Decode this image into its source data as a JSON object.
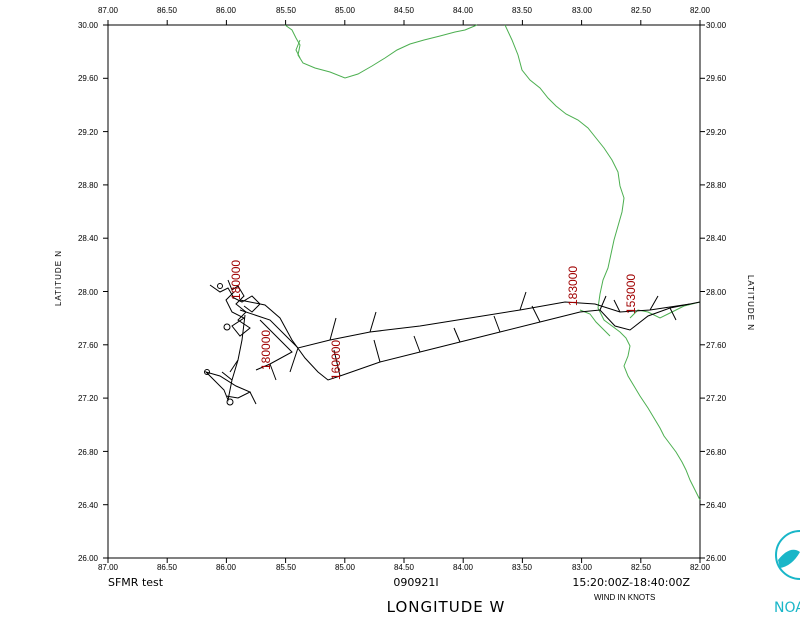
{
  "map": {
    "footer_left": "SFMR test",
    "footer_center": "090921I",
    "footer_right": "15:20:00Z-18:40:00Z",
    "wind_note": "WIND IN KNOTS",
    "x_axis_title": "LONGITUDE  W",
    "y_axis_title_left": "LATITUDE  N",
    "y_axis_title_right": "LATITUDE  N",
    "logo_text": "NOA",
    "lon_ticks": [
      "87.00",
      "86.50",
      "86.00",
      "85.50",
      "85.00",
      "84.50",
      "84.00",
      "83.50",
      "83.00",
      "82.50",
      "82.00"
    ],
    "lat_ticks": [
      "30.00",
      "29.60",
      "29.20",
      "28.80",
      "28.40",
      "28.00",
      "27.60",
      "27.20",
      "26.80",
      "26.40",
      "26.00"
    ],
    "time_labels": [
      "180000",
      "160000",
      "183000",
      "153000",
      "180000"
    ],
    "coast_color": "#4caf50",
    "track_color": "#000000",
    "label_color": "#a00000"
  }
}
